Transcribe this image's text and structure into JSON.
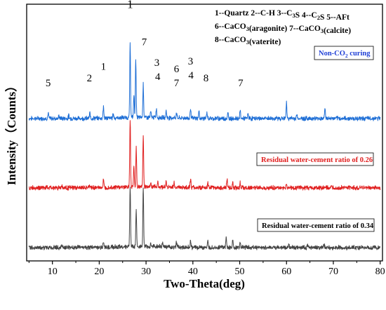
{
  "chart_data": {
    "type": "line",
    "xlabel": "Two-Theta(deg)",
    "ylabel": "Intensity（Counts）",
    "xlim": [
      4.5,
      80.5
    ],
    "xticks": [
      10,
      20,
      30,
      40,
      50,
      60,
      70,
      80
    ],
    "xtick_labels": [
      "10",
      "20",
      "30",
      "40",
      "50",
      "60",
      "70",
      "80"
    ],
    "legend_lines": [
      [
        {
          "t": "1--Quartz  2--C-H  3--C"
        },
        {
          "t": "3",
          "sub": true
        },
        {
          "t": "S  4--C"
        },
        {
          "t": "2",
          "sub": true
        },
        {
          "t": "S  5--AFt"
        }
      ],
      [
        {
          "t": "6--CaCO"
        },
        {
          "t": "3",
          "sub": true
        },
        {
          "t": "(aragonite)  7--CaCO"
        },
        {
          "t": "3",
          "sub": true
        },
        {
          "t": "(calcite)"
        }
      ],
      [
        {
          "t": "8--CaCO"
        },
        {
          "t": "3",
          "sub": true
        },
        {
          "t": "(vaterite)"
        }
      ]
    ],
    "series": [
      {
        "name": "Non-CO₂ curing",
        "color": "#1f6fd6",
        "baseline": 0.555,
        "peaks": [
          {
            "x": 9.1,
            "h": 0.02
          },
          {
            "x": 11.4,
            "h": 0.01
          },
          {
            "x": 13.5,
            "h": 0.012
          },
          {
            "x": 18.0,
            "h": 0.02
          },
          {
            "x": 20.9,
            "h": 0.045
          },
          {
            "x": 23.0,
            "h": 0.018
          },
          {
            "x": 26.6,
            "h": 0.29
          },
          {
            "x": 27.4,
            "h": 0.09
          },
          {
            "x": 27.8,
            "h": 0.23
          },
          {
            "x": 29.4,
            "h": 0.132
          },
          {
            "x": 31.0,
            "h": 0.022
          },
          {
            "x": 32.2,
            "h": 0.036
          },
          {
            "x": 34.3,
            "h": 0.028
          },
          {
            "x": 36.5,
            "h": 0.02
          },
          {
            "x": 39.5,
            "h": 0.04
          },
          {
            "x": 41.3,
            "h": 0.025
          },
          {
            "x": 43.0,
            "h": 0.022
          },
          {
            "x": 47.5,
            "h": 0.02
          },
          {
            "x": 50.1,
            "h": 0.03
          },
          {
            "x": 51.8,
            "h": 0.02
          },
          {
            "x": 60.0,
            "h": 0.06
          },
          {
            "x": 62.2,
            "h": 0.014
          },
          {
            "x": 68.2,
            "h": 0.045
          }
        ]
      },
      {
        "name": "Residual water-cement ratio of 0.26",
        "color": "#e02020",
        "baseline": 0.285,
        "peaks": [
          {
            "x": 12.0,
            "h": 0.012
          },
          {
            "x": 18.0,
            "h": 0.01
          },
          {
            "x": 20.9,
            "h": 0.03
          },
          {
            "x": 26.6,
            "h": 0.265
          },
          {
            "x": 27.4,
            "h": 0.08
          },
          {
            "x": 27.9,
            "h": 0.155
          },
          {
            "x": 29.4,
            "h": 0.205
          },
          {
            "x": 31.0,
            "h": 0.018
          },
          {
            "x": 32.5,
            "h": 0.02
          },
          {
            "x": 34.3,
            "h": 0.02
          },
          {
            "x": 36.0,
            "h": 0.018
          },
          {
            "x": 39.5,
            "h": 0.035
          },
          {
            "x": 43.2,
            "h": 0.02
          },
          {
            "x": 47.3,
            "h": 0.032
          },
          {
            "x": 48.5,
            "h": 0.022
          },
          {
            "x": 50.1,
            "h": 0.02
          },
          {
            "x": 60.0,
            "h": 0.012
          }
        ]
      },
      {
        "name": "Residual water-cement ratio of 0.34",
        "color": "#444444",
        "baseline": 0.052,
        "peaks": [
          {
            "x": 12.0,
            "h": 0.01
          },
          {
            "x": 20.9,
            "h": 0.025
          },
          {
            "x": 26.6,
            "h": 0.238
          },
          {
            "x": 27.9,
            "h": 0.15
          },
          {
            "x": 29.4,
            "h": 0.232
          },
          {
            "x": 31.0,
            "h": 0.012
          },
          {
            "x": 33.5,
            "h": 0.015
          },
          {
            "x": 36.5,
            "h": 0.018
          },
          {
            "x": 39.5,
            "h": 0.025
          },
          {
            "x": 43.2,
            "h": 0.02
          },
          {
            "x": 47.1,
            "h": 0.04
          },
          {
            "x": 48.5,
            "h": 0.025
          },
          {
            "x": 50.1,
            "h": 0.018
          },
          {
            "x": 60.5,
            "h": 0.012
          },
          {
            "x": 64.5,
            "h": 0.01
          },
          {
            "x": 68.0,
            "h": 0.012
          }
        ]
      }
    ],
    "series_labels": [
      {
        "text": "Non-CO",
        "sub": "2",
        "tail": " curing",
        "color": "#1f3fd6"
      },
      {
        "text": "Residual water-cement ratio of 0.26",
        "color": "#e02020"
      },
      {
        "text": "Residual water-cement ratio of 0.34",
        "color": "#000000"
      }
    ],
    "annotations": [
      {
        "text": "1",
        "x": 26.6,
        "level": 0.985,
        "big": true
      },
      {
        "text": "7",
        "x": 29.6,
        "level": 0.84
      },
      {
        "text": "3",
        "x": 32.3,
        "level": 0.76
      },
      {
        "text": "4",
        "x": 32.5,
        "level": 0.705
      },
      {
        "text": "3",
        "x": 39.5,
        "level": 0.765
      },
      {
        "text": "4",
        "x": 39.6,
        "level": 0.71
      },
      {
        "text": "6",
        "x": 36.5,
        "level": 0.735
      },
      {
        "text": "7",
        "x": 36.5,
        "level": 0.68
      },
      {
        "text": "8",
        "x": 42.8,
        "level": 0.7
      },
      {
        "text": "7",
        "x": 50.2,
        "level": 0.68
      },
      {
        "text": "5",
        "x": 9.1,
        "level": 0.68
      },
      {
        "text": "2",
        "x": 17.9,
        "level": 0.7
      },
      {
        "text": "1",
        "x": 20.9,
        "level": 0.745
      }
    ]
  }
}
